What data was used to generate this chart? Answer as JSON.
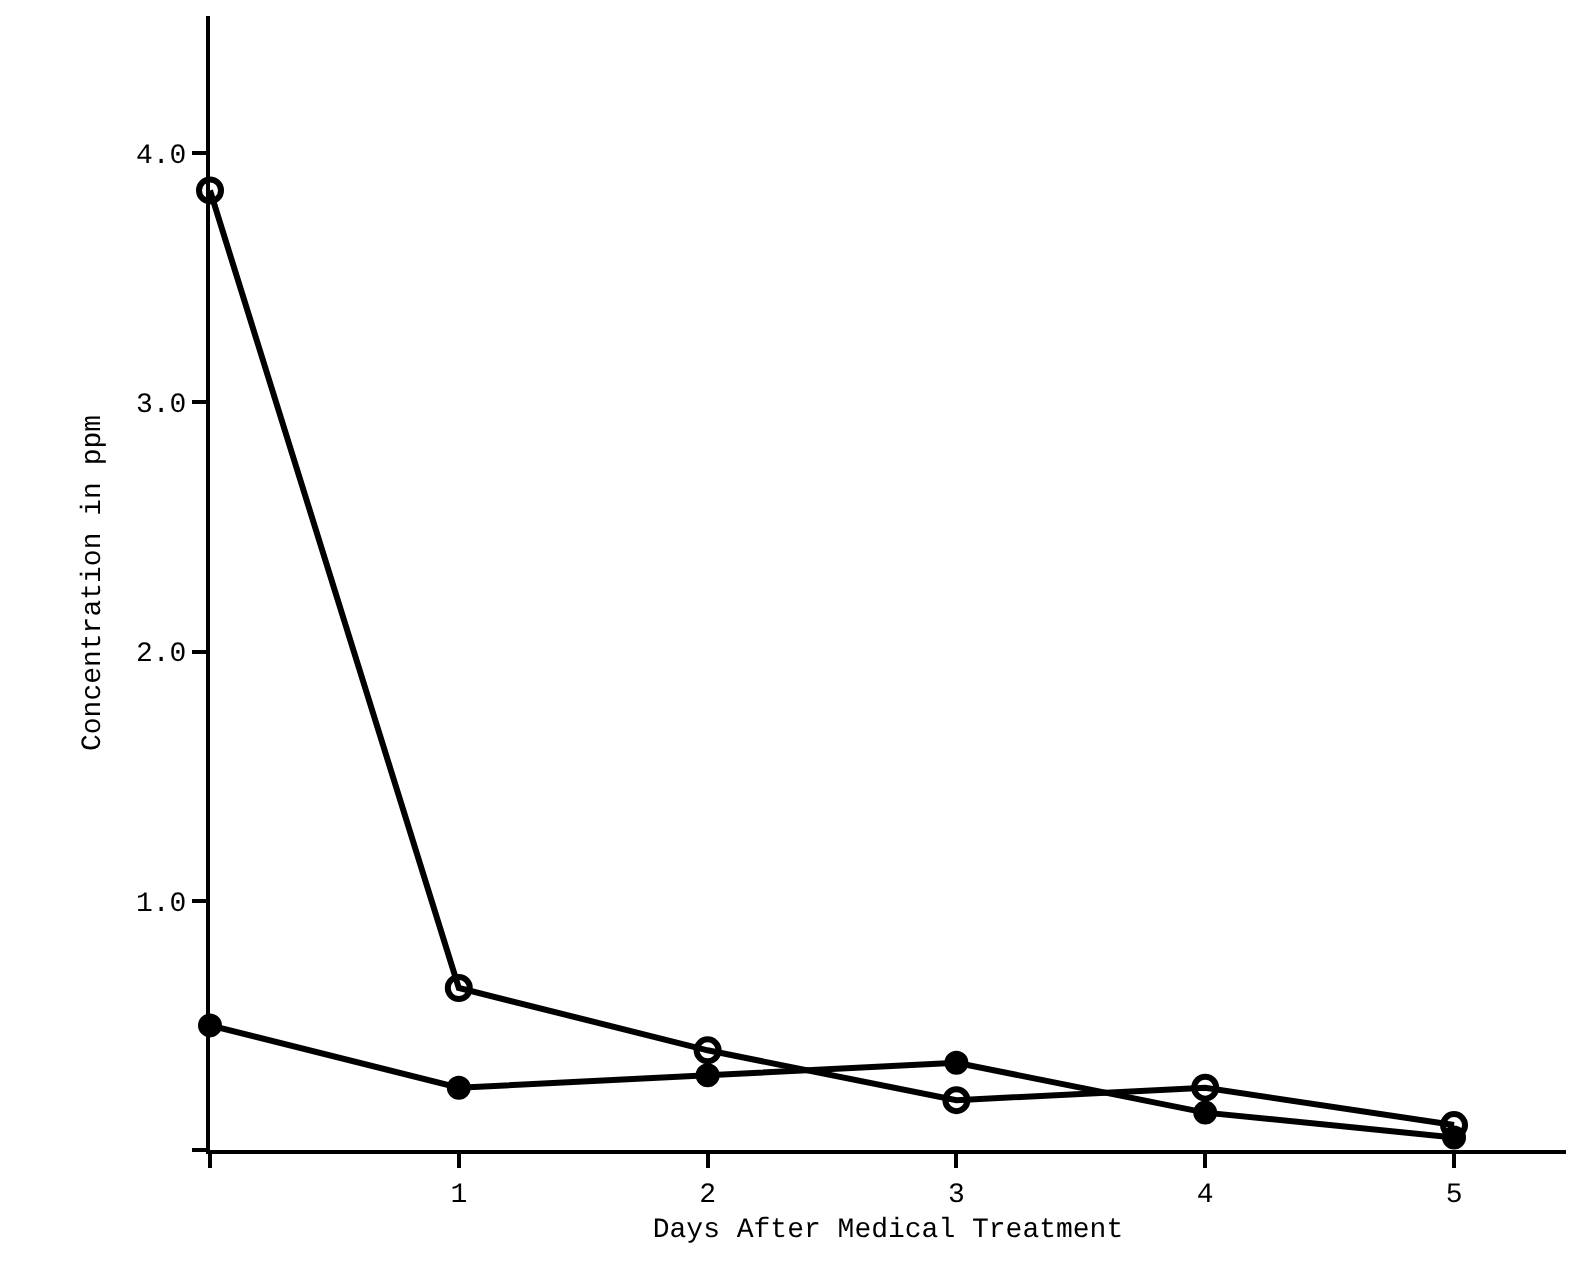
{
  "chart_data": {
    "type": "line",
    "xlabel": "Days After Medical Treatment",
    "ylabel": "Concentration in ppm",
    "x": [
      0,
      1,
      2,
      3,
      4,
      5
    ],
    "series": [
      {
        "color": "#000000",
        "marker": "circle-open",
        "values": [
          3.85,
          0.65,
          0.4,
          0.2,
          0.25,
          0.1
        ]
      },
      {
        "color": "#000000",
        "marker": "circle",
        "values": [
          0.5,
          0.25,
          0.3,
          0.35,
          0.15,
          0.05
        ]
      }
    ],
    "xlim": [
      0,
      5.45
    ],
    "xticks": [
      {
        "value": 0,
        "label": null
      },
      1,
      2,
      3,
      4,
      5
    ],
    "ylim": [
      0,
      4.55
    ],
    "yticks": [
      {
        "value": 0,
        "label": null
      },
      {
        "value": 1,
        "label": "1.0"
      },
      {
        "value": 2,
        "label": "2.0"
      },
      {
        "value": 3,
        "label": "3.0"
      },
      {
        "value": 4,
        "label": "4.0"
      }
    ],
    "grid": false,
    "legend": false,
    "line_style": "solid"
  }
}
